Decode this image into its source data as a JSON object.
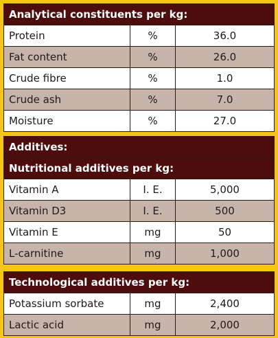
{
  "analytical": {
    "title": "Analytical constituents per kg:",
    "rows": [
      {
        "name": "Protein",
        "unit": "%",
        "value": "36.0"
      },
      {
        "name": "Fat content",
        "unit": "%",
        "value": "26.0"
      },
      {
        "name": "Crude fibre",
        "unit": "%",
        "value": "1.0"
      },
      {
        "name": "Crude ash",
        "unit": "%",
        "value": "7.0"
      },
      {
        "name": "Moisture",
        "unit": "%",
        "value": "27.0"
      }
    ]
  },
  "additives": {
    "title": "Additives:",
    "nutritional_title": "Nutritional additives per kg:",
    "nutritional_rows": [
      {
        "name": "Vitamin A",
        "unit": "I. E.",
        "value": "5,000"
      },
      {
        "name": "Vitamin D3",
        "unit": "I. E.",
        "value": "500"
      },
      {
        "name": "Vitamin E",
        "unit": "mg",
        "value": "50"
      },
      {
        "name": "L-carnitine",
        "unit": "mg",
        "value": "1,000"
      }
    ]
  },
  "technological": {
    "title": "Technological additives per kg:",
    "rows": [
      {
        "name": "Potassium sorbate",
        "unit": "mg",
        "value": "2,400"
      },
      {
        "name": "Lactic acid",
        "unit": "mg",
        "value": "2,000"
      }
    ]
  },
  "colors": {
    "background": "#f5c518",
    "header": "#4d0d0d",
    "row_light": "#ffffff",
    "row_shaded": "#c7b5ab"
  }
}
